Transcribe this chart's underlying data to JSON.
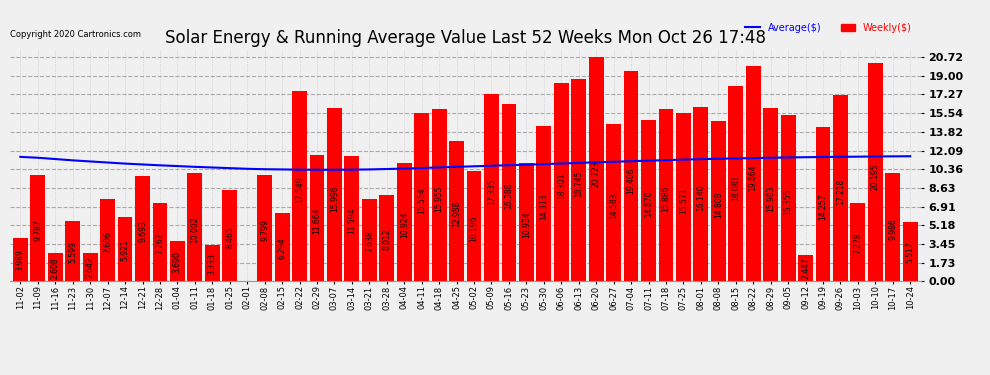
{
  "title": "Solar Energy & Running Average Value Last 52 Weeks Mon Oct 26 17:48",
  "copyright": "Copyright 2020 Cartronics.com",
  "legend_avg": "Average($)",
  "legend_weekly": "Weekly($)",
  "categories": [
    "11-02",
    "11-09",
    "11-16",
    "11-23",
    "11-30",
    "12-07",
    "12-14",
    "12-21",
    "12-28",
    "01-04",
    "01-11",
    "01-18",
    "01-25",
    "02-01",
    "02-08",
    "02-15",
    "02-22",
    "02-29",
    "03-07",
    "03-14",
    "03-21",
    "03-28",
    "04-04",
    "04-11",
    "04-18",
    "04-25",
    "05-02",
    "05-09",
    "05-16",
    "05-23",
    "05-30",
    "06-06",
    "06-13",
    "06-20",
    "06-27",
    "07-04",
    "07-11",
    "07-18",
    "07-25",
    "08-01",
    "08-08",
    "08-15",
    "08-22",
    "08-29",
    "09-05",
    "09-12",
    "09-19",
    "09-26",
    "10-03",
    "10-10",
    "10-17",
    "10-24"
  ],
  "weekly_values": [
    3.989,
    9.787,
    2.608,
    5.599,
    2.642,
    7.606,
    5.921,
    9.693,
    7.262,
    3.69,
    10.002,
    3.333,
    8.465,
    0.008,
    9.799,
    6.294,
    17.549,
    11.664,
    15.996,
    11.594,
    7.638,
    8.012,
    10.924,
    15.554,
    15.955,
    12.988,
    10.196,
    17.335,
    16.388,
    10.934,
    14.313,
    18.301,
    18.745,
    20.723,
    14.583,
    19.406,
    14.87,
    15.886,
    15.571,
    16.14,
    14.808,
    18.081,
    19.864,
    15.983,
    15.355,
    2.447,
    14.257,
    17.218,
    7.278,
    20.195,
    9.986,
    5.517
  ],
  "average_values": [
    11.5,
    11.42,
    11.3,
    11.18,
    11.08,
    10.98,
    10.88,
    10.8,
    10.72,
    10.65,
    10.58,
    10.52,
    10.46,
    10.4,
    10.36,
    10.34,
    10.32,
    10.31,
    10.31,
    10.32,
    10.34,
    10.38,
    10.42,
    10.47,
    10.53,
    10.58,
    10.63,
    10.68,
    10.73,
    10.78,
    10.83,
    10.89,
    10.94,
    11.0,
    11.05,
    11.1,
    11.15,
    11.2,
    11.25,
    11.29,
    11.33,
    11.36,
    11.39,
    11.42,
    11.45,
    11.47,
    11.49,
    11.51,
    11.52,
    11.54,
    11.55,
    11.56
  ],
  "bar_color": "#ff0000",
  "line_color": "#0000ff",
  "background_color": "#f0f0f0",
  "plot_bg_color": "#f0f0f0",
  "grid_h_color": "#aaaaaa",
  "grid_v_color": "#cccccc",
  "title_fontsize": 12,
  "label_fontsize": 5.5,
  "ytick_fontsize": 8,
  "xtick_fontsize": 6,
  "yticks": [
    0.0,
    1.73,
    3.45,
    5.18,
    6.91,
    8.63,
    10.36,
    12.09,
    13.82,
    15.54,
    17.27,
    19.0,
    20.72
  ],
  "ylim": [
    0.0,
    21.5
  ]
}
